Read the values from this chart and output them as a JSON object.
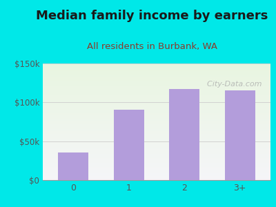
{
  "title": "Median family income by earners",
  "subtitle": "All residents in Burbank, WA",
  "categories": [
    "0",
    "1",
    "2",
    "3+"
  ],
  "values": [
    35000,
    90000,
    117000,
    115000
  ],
  "bar_color": "#b39ddb",
  "outer_bg": "#00e8e8",
  "title_color": "#1a1a1a",
  "subtitle_color": "#8b3a2a",
  "tick_color": "#555555",
  "ylim": [
    0,
    150000
  ],
  "yticks": [
    0,
    50000,
    100000,
    150000
  ],
  "ytick_labels": [
    "$0",
    "$50k",
    "$100k",
    "$150k"
  ],
  "title_fontsize": 13,
  "subtitle_fontsize": 9.5,
  "watermark_text": "  City-Data.com",
  "watermark_color": "#aaaaaa",
  "watermark_icon": "ⓘ"
}
